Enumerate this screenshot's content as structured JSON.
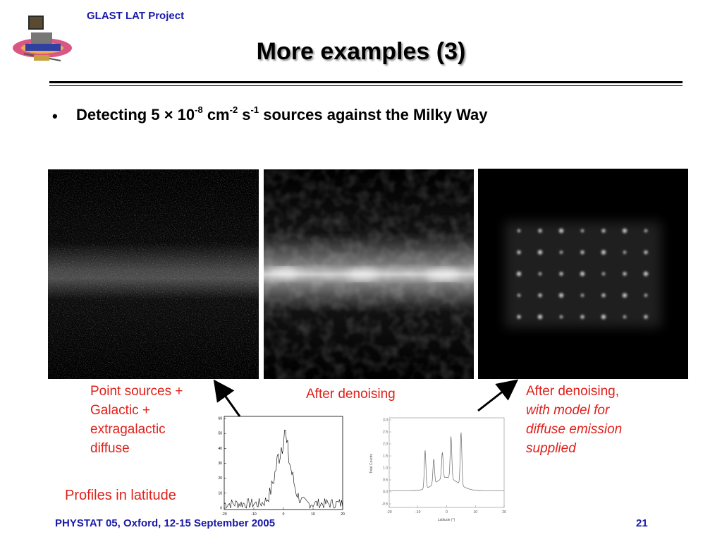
{
  "header": {
    "project": "GLAST LAT Project",
    "logo_icon": "glast-satellite-logo"
  },
  "slide": {
    "title": "More examples (3)",
    "bullet": {
      "marker": "•",
      "text_parts": [
        "Detecting 5 × 10",
        "-8",
        " cm",
        "-2",
        " s",
        "-1",
        " sources against the Milky Way"
      ]
    }
  },
  "panels": [
    {
      "description_icon": "galactic-plane-noisy-image"
    },
    {
      "description_icon": "galactic-plane-denoised-image"
    },
    {
      "description_icon": "point-source-grid-image"
    }
  ],
  "captions": {
    "left": [
      "Point sources +",
      "Galactic +",
      "extragalactic",
      "diffuse"
    ],
    "middle": "After denoising",
    "right_line1": "After denoising,",
    "right_italic": [
      "with model for",
      "diffuse emission",
      "supplied"
    ]
  },
  "profiles_label": "Profiles in latitude",
  "plot_left": {
    "yticks": [
      "60",
      "50",
      "40",
      "30",
      "20",
      "10",
      "0"
    ],
    "xticks": [
      "-20",
      "-10",
      "0",
      "10",
      "20"
    ]
  },
  "plot_right": {
    "yticks": [
      "3.0",
      "2.5",
      "2.0",
      "1.5",
      "1.0",
      "0.5",
      "0.0",
      "-0.5"
    ],
    "xticks": [
      "-20",
      "-10",
      "0",
      "10",
      "20"
    ],
    "xlabel": "Latitude (°)",
    "ylabel": "Total Counts"
  },
  "footer": {
    "left": "PHYSTAT 05, Oxford, 12-15 September 2005",
    "right": "21"
  },
  "colors": {
    "accent_blue": "#1a1aa8",
    "caption_red": "#e0201a"
  }
}
